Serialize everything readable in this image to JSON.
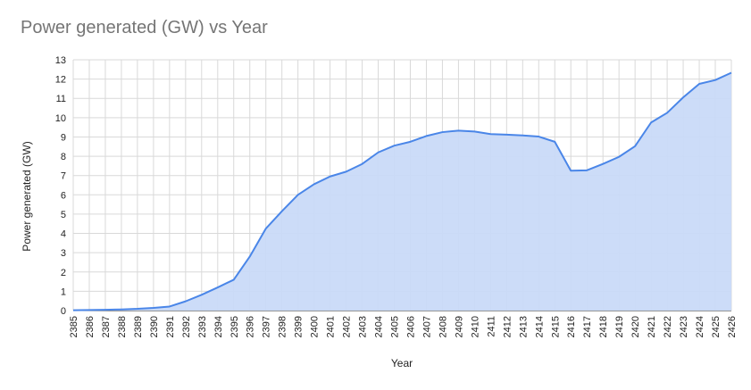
{
  "chart_data": {
    "type": "area",
    "title": "Power generated (GW) vs Year",
    "xlabel": "Year",
    "ylabel": "Power generated (GW)",
    "x": [
      "2385",
      "2386",
      "2387",
      "2388",
      "2389",
      "2390",
      "2391",
      "2392",
      "2393",
      "2394",
      "2395",
      "2396",
      "2397",
      "2398",
      "2399",
      "2400",
      "2401",
      "2402",
      "2403",
      "2404",
      "2405",
      "2406",
      "2407",
      "2408",
      "2409",
      "2410",
      "2411",
      "2412",
      "2413",
      "2414",
      "2415",
      "2416",
      "2417",
      "2418",
      "2419",
      "2420",
      "2421",
      "2422",
      "2423",
      "2424",
      "2425",
      "2426"
    ],
    "y_ticks": [
      "0",
      "1",
      "2",
      "3",
      "4",
      "5",
      "6",
      "7",
      "8",
      "9",
      "10",
      "11",
      "12",
      "13"
    ],
    "ylim": [
      0,
      13
    ],
    "series": [
      {
        "values": [
          0.02,
          0.03,
          0.04,
          0.06,
          0.09,
          0.14,
          0.21,
          0.48,
          0.82,
          1.2,
          1.6,
          2.8,
          4.25,
          5.15,
          6.0,
          6.55,
          6.95,
          7.2,
          7.6,
          8.2,
          8.55,
          8.75,
          9.05,
          9.25,
          9.33,
          9.28,
          9.15,
          9.12,
          9.08,
          9.02,
          8.75,
          7.25,
          7.27,
          7.6,
          7.97,
          8.52,
          9.75,
          10.25,
          11.05,
          11.75,
          11.95,
          12.33
        ]
      }
    ],
    "colors": {
      "line": "#4a86e8",
      "fill": "#c9daf8",
      "grid": "#d9d9d9"
    },
    "grid": true,
    "legend": "none"
  }
}
